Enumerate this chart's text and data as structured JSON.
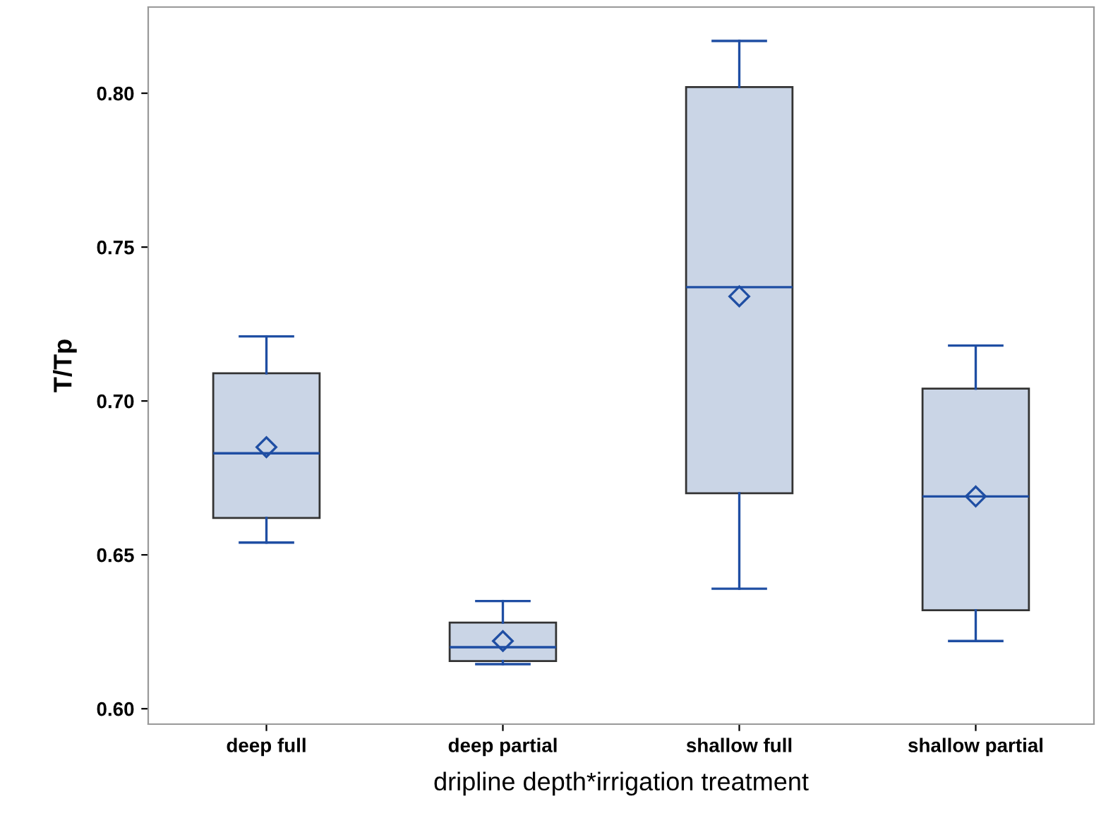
{
  "chart_data": {
    "type": "box",
    "xlabel": "dripline depth*irrigation treatment",
    "ylabel": "T/Tp",
    "categories": [
      "deep full",
      "deep partial",
      "shallow full",
      "shallow partial"
    ],
    "boxes": [
      {
        "low": 0.654,
        "q1": 0.662,
        "median": 0.683,
        "q3": 0.709,
        "high": 0.721,
        "mean": 0.685
      },
      {
        "low": 0.6145,
        "q1": 0.6155,
        "median": 0.62,
        "q3": 0.628,
        "high": 0.635,
        "mean": 0.622
      },
      {
        "low": 0.639,
        "q1": 0.67,
        "median": 0.737,
        "q3": 0.802,
        "high": 0.817,
        "mean": 0.734
      },
      {
        "low": 0.622,
        "q1": 0.632,
        "median": 0.669,
        "q3": 0.704,
        "high": 0.718,
        "mean": 0.669
      }
    ],
    "color": "#cad5e6",
    "ylim": [
      0.595,
      0.828
    ],
    "yticks": [
      {
        "value": 0.6,
        "label": "0.60"
      },
      {
        "value": 0.65,
        "label": "0.65"
      },
      {
        "value": 0.7,
        "label": "0.70"
      },
      {
        "value": 0.75,
        "label": "0.75"
      },
      {
        "value": 0.8,
        "label": "0.80"
      }
    ],
    "grid": false,
    "marker": "diamond",
    "legend": false
  }
}
